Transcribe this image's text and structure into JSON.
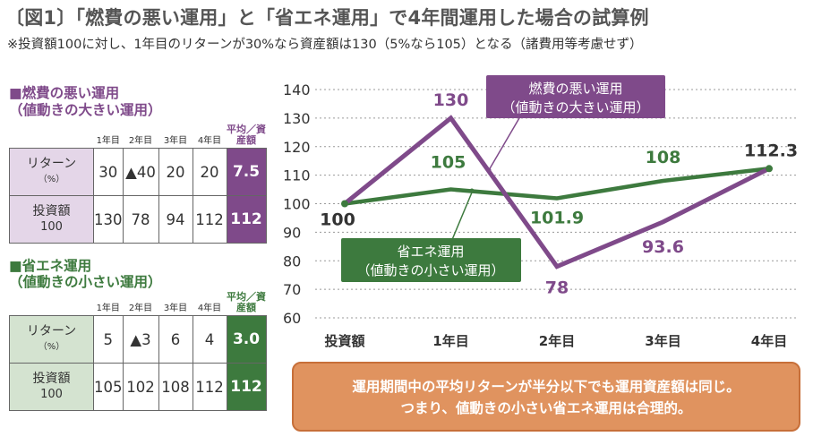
{
  "title": "〔図1〕「燃費の悪い運用」と「省エネ運用」で4年間運用した場合の試算例",
  "subtitle": "※投資額100に対し、1年目のリターンが30%なら資産額は130（5%なら105）となる（諸費用等考慮せず）",
  "colors": {
    "purple": "#7f4a8a",
    "green": "#3d7a3e",
    "purple_light": "#e4d6e8",
    "green_light": "#d4e3d0",
    "orange": "#e0935f"
  },
  "table1": {
    "heading": "■燃費の悪い運用",
    "heading2": "（値動きの大きい運用）",
    "headers": [
      "1年目",
      "2年目",
      "3年目",
      "4年目",
      "平均／資産額"
    ],
    "row1": {
      "label": "リターン",
      "unit": "（%）",
      "cells": [
        "30",
        "▲40",
        "20",
        "20"
      ],
      "avg": "7.5"
    },
    "row2": {
      "label": "投資額",
      "unit": "100",
      "cells": [
        "130",
        "78",
        "94",
        "112"
      ],
      "avg": "112"
    }
  },
  "table2": {
    "heading": "■省エネ運用",
    "heading2": "（値動きの小さい運用）",
    "headers": [
      "1年目",
      "2年目",
      "3年目",
      "4年目",
      "平均／資産額"
    ],
    "row1": {
      "label": "リターン",
      "unit": "（%）",
      "cells": [
        "5",
        "▲3",
        "6",
        "4"
      ],
      "avg": "3.0"
    },
    "row2": {
      "label": "投資額",
      "unit": "100",
      "cells": [
        "105",
        "102",
        "108",
        "112"
      ],
      "avg": "112"
    }
  },
  "message": {
    "line1": "運用期間中の平均リターンが半分以下でも運用資産額は同じ。",
    "line2": "つまり、値動きの小さい省エネ運用は合理的。"
  },
  "chart_data": {
    "type": "line",
    "categories": [
      "投資額",
      "1年目",
      "2年目",
      "3年目",
      "4年目"
    ],
    "ylim": [
      60,
      140
    ],
    "yticks": [
      60,
      70,
      80,
      90,
      100,
      110,
      120,
      130,
      140
    ],
    "grid": true,
    "series": [
      {
        "name": "燃費の悪い運用\n（値動きの大きい運用）",
        "color": "#7f4a8a",
        "values": [
          100,
          130,
          78,
          93.6,
          112.3
        ],
        "labels": [
          "100",
          "130",
          "78",
          "93.6",
          "112.3"
        ]
      },
      {
        "name": "省エネ運用\n（値動きの小さい運用）",
        "color": "#3d7a3e",
        "values": [
          100,
          105,
          101.9,
          108,
          112.3
        ],
        "labels": [
          "",
          "105",
          "101.9",
          "108",
          ""
        ]
      }
    ]
  }
}
